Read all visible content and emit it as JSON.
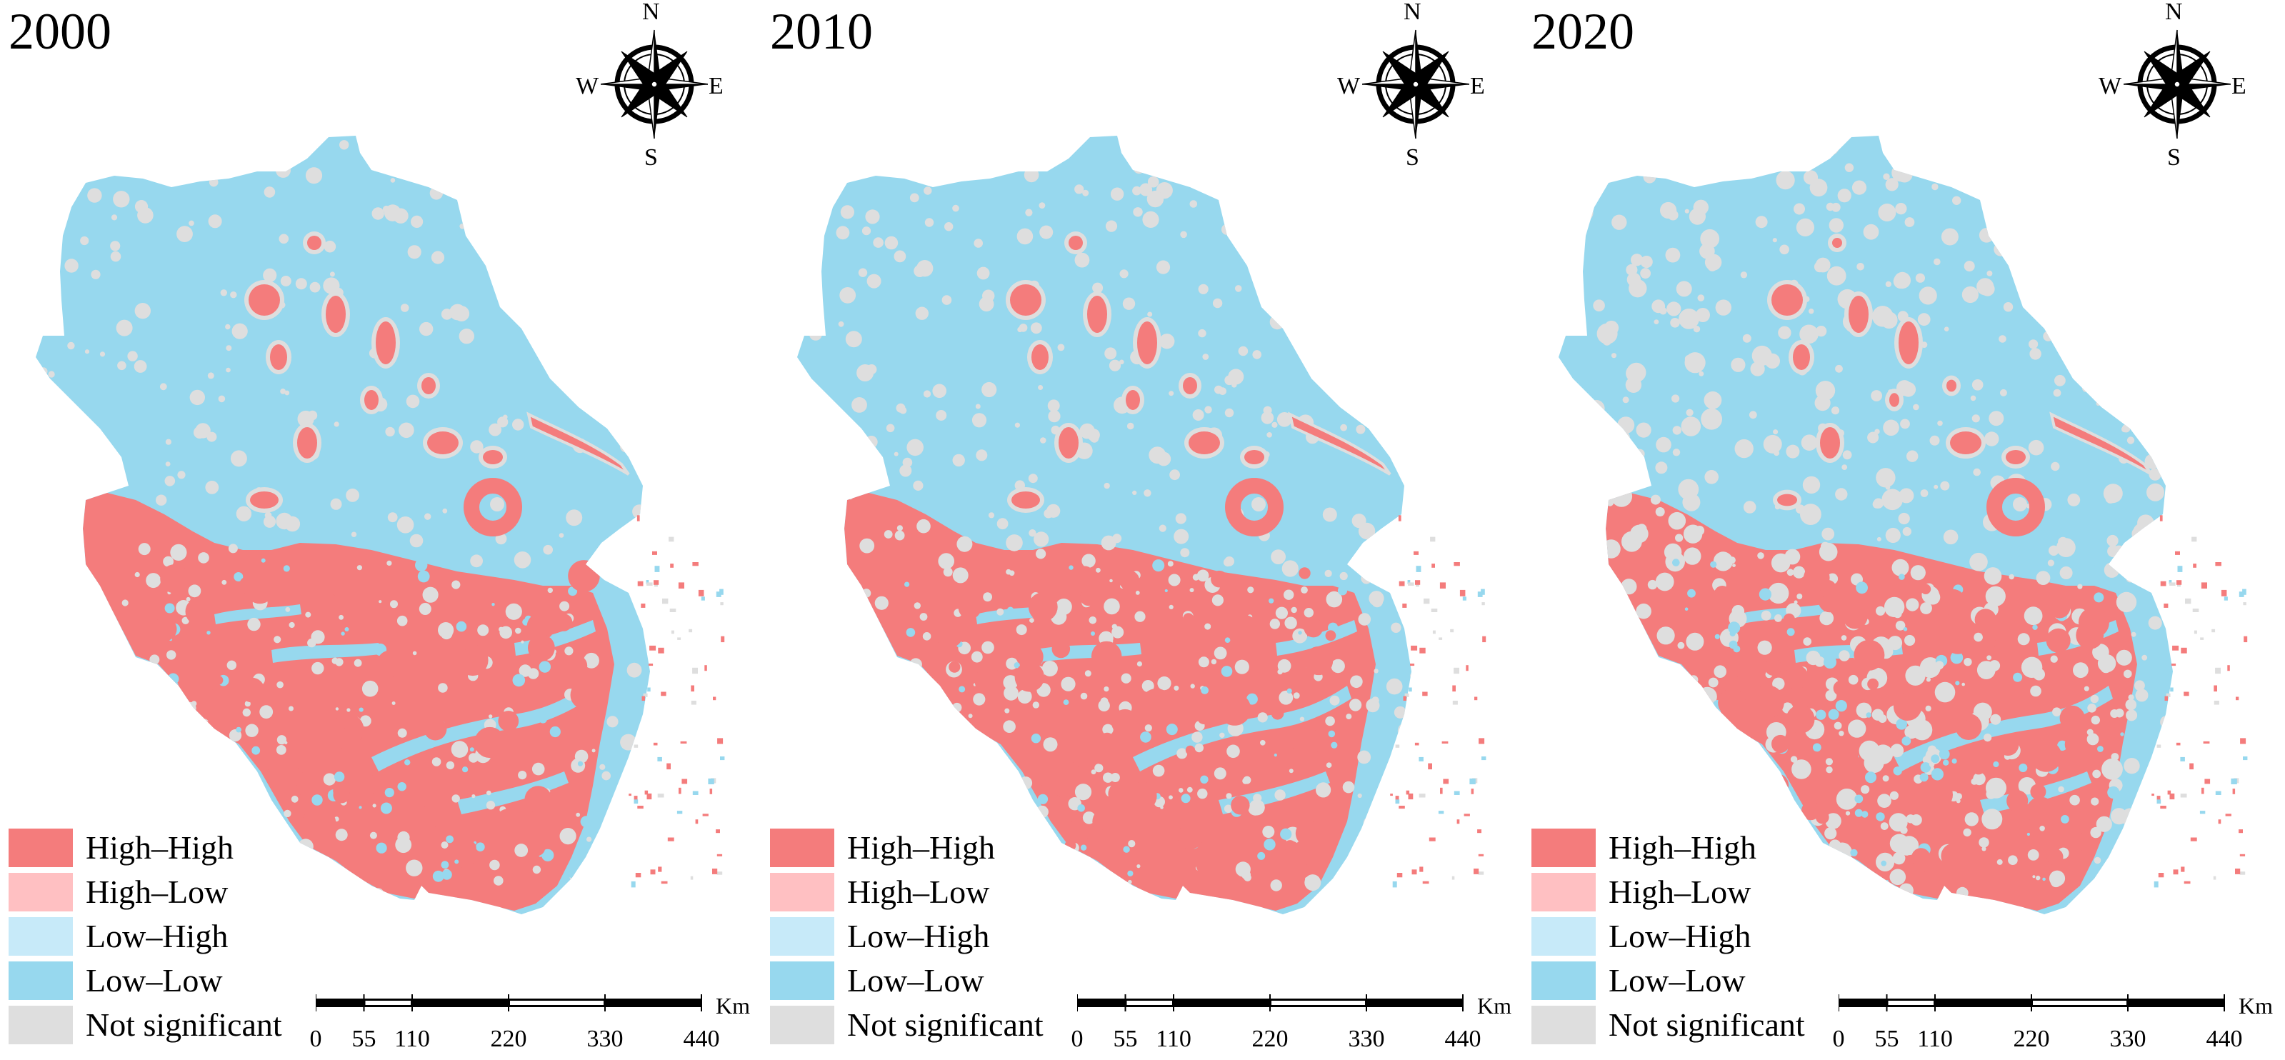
{
  "colors": {
    "high_high": "#f47c7c",
    "high_low": "#ffc0c2",
    "low_high": "#c7eaf9",
    "low_low": "#97d8ee",
    "not_significant": "#dedede"
  },
  "panels": [
    {
      "year": "2000"
    },
    {
      "year": "2010"
    },
    {
      "year": "2020"
    }
  ],
  "compass": {
    "north": "N",
    "south": "S",
    "east": "E",
    "west": "W",
    "icon": "compass-rose-icon"
  },
  "legend": [
    {
      "label": "High–High",
      "color_key": "high_high"
    },
    {
      "label": "High–Low",
      "color_key": "high_low"
    },
    {
      "label": "Low–High",
      "color_key": "low_high"
    },
    {
      "label": "Low–Low",
      "color_key": "low_low"
    },
    {
      "label": "Not significant",
      "color_key": "not_significant"
    }
  ],
  "scalebar": {
    "unit": "Km",
    "ticks": [
      "0",
      "55",
      "110",
      "220",
      "330",
      "440"
    ],
    "tick_values": [
      0,
      55,
      110,
      220,
      330,
      440
    ]
  }
}
